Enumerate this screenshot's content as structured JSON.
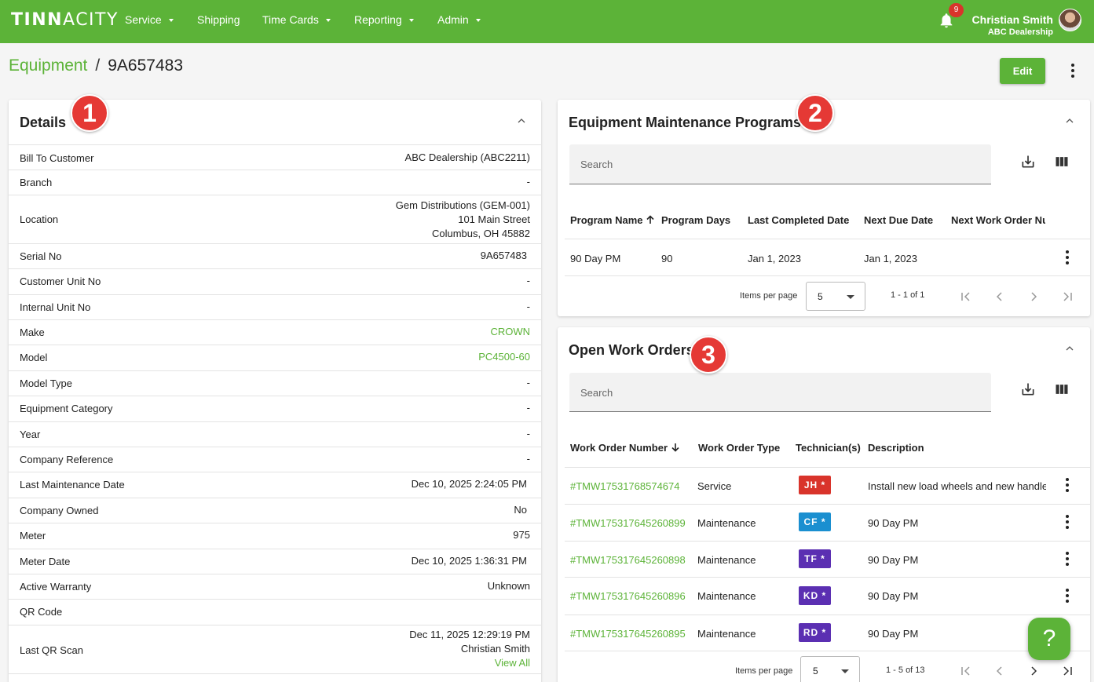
{
  "nav": {
    "logo_main": "TINN",
    "logo_rest": "ACITY",
    "items": [
      "Service",
      "Shipping",
      "Time Cards",
      "Reporting",
      "Admin"
    ],
    "notification_count": "9",
    "user_name": "Christian Smith",
    "user_org": "ABC Dealership"
  },
  "breadcrumb": {
    "parent": "Equipment",
    "separator": "/",
    "current": "9A657483"
  },
  "actions": {
    "edit_label": "Edit"
  },
  "details": {
    "title": "Details",
    "marker": "1",
    "rows": [
      {
        "label": "Bill To Customer",
        "value": "ABC Dealership  (ABC2211)"
      },
      {
        "label": "Branch",
        "value": "-"
      },
      {
        "label": "Location",
        "value": "Gem Distributions  (GEM-001)",
        "value2": "101 Main Street",
        "value3": "Columbus, OH 45882"
      },
      {
        "label": "Serial No",
        "value": "9A657483"
      },
      {
        "label": "Customer Unit No",
        "value": "-"
      },
      {
        "label": "Internal Unit No",
        "value": "-"
      },
      {
        "label": "Make",
        "value": "CROWN"
      },
      {
        "label": "Model",
        "value": "PC4500-60"
      },
      {
        "label": "Model Type",
        "value": "-"
      },
      {
        "label": "Equipment Category",
        "value": "-"
      },
      {
        "label": "Year",
        "value": "-"
      },
      {
        "label": "Company Reference",
        "value": "-"
      },
      {
        "label": "Last Maintenance Date",
        "value": "Dec 10, 2025 2:24:05 PM"
      },
      {
        "label": "Company Owned",
        "value": "No"
      },
      {
        "label": "Meter",
        "value": "975"
      },
      {
        "label": "Meter Date",
        "value": "Dec 10, 2025 1:36:31 PM"
      },
      {
        "label": "Active Warranty",
        "value": "Unknown"
      },
      {
        "label": "QR Code",
        "value": ""
      },
      {
        "label": "Last QR Scan",
        "value": "Dec 11, 2025 12:29:19 PM",
        "value2": "Christian Smith",
        "value3": "View All"
      }
    ]
  },
  "programs": {
    "title": "Equipment Maintenance Programs",
    "marker": "2",
    "search_placeholder": "Search",
    "columns": [
      "Program Name",
      "Program Days",
      "Last Completed Date",
      "Next Due Date",
      "Next Work Order Num"
    ],
    "rows": [
      {
        "name": "90 Day PM",
        "days": "90",
        "last": "Jan 1, 2023",
        "next": "Jan 1, 2023",
        "next_wo": ""
      }
    ],
    "items_per_page_label": "Items per page",
    "page_size": "5",
    "range": "1 - 1 of 1"
  },
  "work_orders": {
    "title": "Open Work Orders",
    "marker": "3",
    "search_placeholder": "Search",
    "columns": [
      "Work Order Number",
      "Work Order Type",
      "Technician(s)",
      "Description"
    ],
    "rows": [
      {
        "number": "#TMW17531768574674",
        "type": "Service",
        "tech": "JH *",
        "tech_color": "#d9342b",
        "desc": "Install new load wheels and new handle"
      },
      {
        "number": "#TMW175317645260899",
        "type": "Maintenance",
        "tech": "CF *",
        "tech_color": "#1a8fd0",
        "desc": "90 Day PM"
      },
      {
        "number": "#TMW175317645260898",
        "type": "Maintenance",
        "tech": "TF *",
        "tech_color": "#5b2fb2",
        "desc": "90 Day PM"
      },
      {
        "number": "#TMW175317645260896",
        "type": "Maintenance",
        "tech": "KD *",
        "tech_color": "#5b2fb2",
        "desc": "90 Day PM"
      },
      {
        "number": "#TMW175317645260895",
        "type": "Maintenance",
        "tech": "RD *",
        "tech_color": "#5b2fb2",
        "desc": "90 Day PM"
      }
    ],
    "items_per_page_label": "Items per page",
    "page_size": "5",
    "range": "1 - 5 of 13"
  },
  "help": {
    "label": "?"
  },
  "colors": {
    "brand": "#5cb338",
    "marker": "#e53935"
  }
}
